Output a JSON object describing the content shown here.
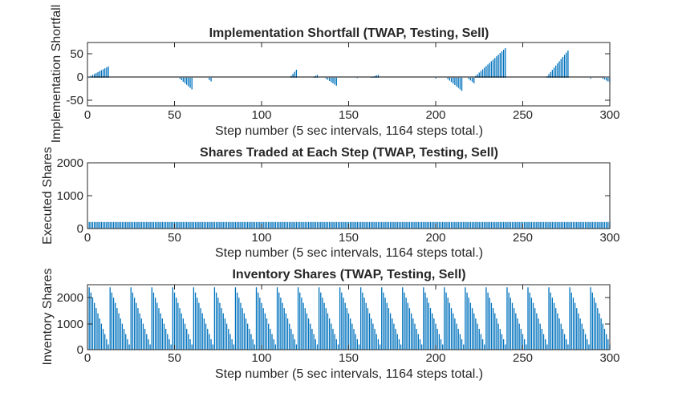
{
  "chart_data": [
    {
      "type": "bar",
      "title": "Implementation Shortfall (TWAP, Testing, Sell)",
      "xlabel": "Step number (5 sec intervals, 1164 steps total.)",
      "ylabel": "Implementation Shortfall",
      "xlim": [
        0,
        300
      ],
      "ylim": [
        -60,
        75
      ],
      "xticks": [
        "0",
        "50",
        "100",
        "150",
        "200",
        "250",
        "300"
      ],
      "yticks": [
        "50",
        "0",
        "-50"
      ],
      "bar_color": "#0072BD",
      "grid": false,
      "segments_note": "ramps of per-step values (start step, end step, start value, end value)",
      "segments": [
        {
          "start": 1,
          "end": 12,
          "from": 2,
          "to": 24
        },
        {
          "start": 53,
          "end": 60,
          "from": -2,
          "to": -25
        },
        {
          "start": 70,
          "end": 71,
          "from": -5,
          "to": -8
        },
        {
          "start": 117,
          "end": 120,
          "from": 4,
          "to": 17
        },
        {
          "start": 130,
          "end": 132,
          "from": 2,
          "to": 6
        },
        {
          "start": 137,
          "end": 143,
          "from": -2,
          "to": -17
        },
        {
          "start": 155,
          "end": 155,
          "from": -1,
          "to": -1
        },
        {
          "start": 163,
          "end": 167,
          "from": 1,
          "to": 6
        },
        {
          "start": 200,
          "end": 200,
          "from": -2,
          "to": -2
        },
        {
          "start": 207,
          "end": 215,
          "from": -3,
          "to": -28
        },
        {
          "start": 219,
          "end": 222,
          "from": -3,
          "to": -12
        },
        {
          "start": 223,
          "end": 240,
          "from": 4,
          "to": 63
        },
        {
          "start": 264,
          "end": 276,
          "from": 3,
          "to": 58
        },
        {
          "start": 289,
          "end": 289,
          "from": -2,
          "to": -2
        },
        {
          "start": 296,
          "end": 300,
          "from": -2,
          "to": -10
        }
      ]
    },
    {
      "type": "bar",
      "title": "Shares Traded at Each Step (TWAP, Testing, Sell)",
      "xlabel": "Step number (5 sec intervals, 1164 steps total.)",
      "ylabel": "Executed Shares",
      "xlim": [
        0,
        300
      ],
      "ylim": [
        0,
        2000
      ],
      "xticks": [
        "0",
        "50",
        "100",
        "150",
        "200",
        "250",
        "300"
      ],
      "yticks": [
        "2000",
        "1000",
        "0"
      ],
      "bar_color": "#0072BD",
      "grid": false,
      "constant_value": 200,
      "steps": [
        1,
        300
      ]
    },
    {
      "type": "bar",
      "title": "Inventory Shares (TWAP, Testing, Sell)",
      "xlabel": "Step number (5 sec intervals, 1164 steps total.)",
      "ylabel": "Inventory Shares",
      "xlim": [
        0,
        300
      ],
      "ylim": [
        0,
        2500
      ],
      "xticks": [
        "0",
        "50",
        "100",
        "150",
        "200",
        "250",
        "300"
      ],
      "yticks": [
        "2000",
        "1000",
        "0"
      ],
      "bar_color": "#0072BD",
      "grid": false,
      "sawtooth": {
        "start_value": 2400,
        "decrement": 200,
        "cycle_length": 12,
        "first_step": 1
      }
    }
  ]
}
